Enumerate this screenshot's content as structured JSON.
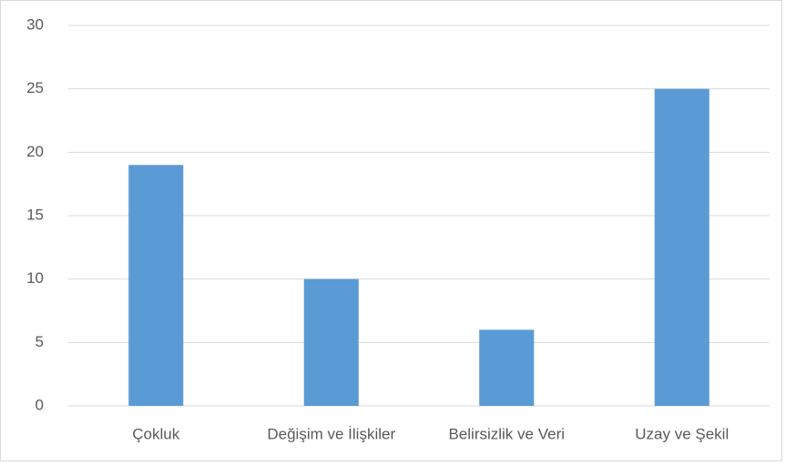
{
  "chart_data": {
    "type": "bar",
    "categories": [
      "Çokluk",
      "Değişim ve İlişkiler",
      "Belirsizlik ve Veri",
      "Uzay ve Şekil"
    ],
    "values": [
      19,
      10,
      6,
      25
    ],
    "color": "#5b9bd5",
    "ylim": [
      0,
      30
    ],
    "yticks": [
      0,
      5,
      10,
      15,
      20,
      25,
      30
    ],
    "grid": true
  }
}
